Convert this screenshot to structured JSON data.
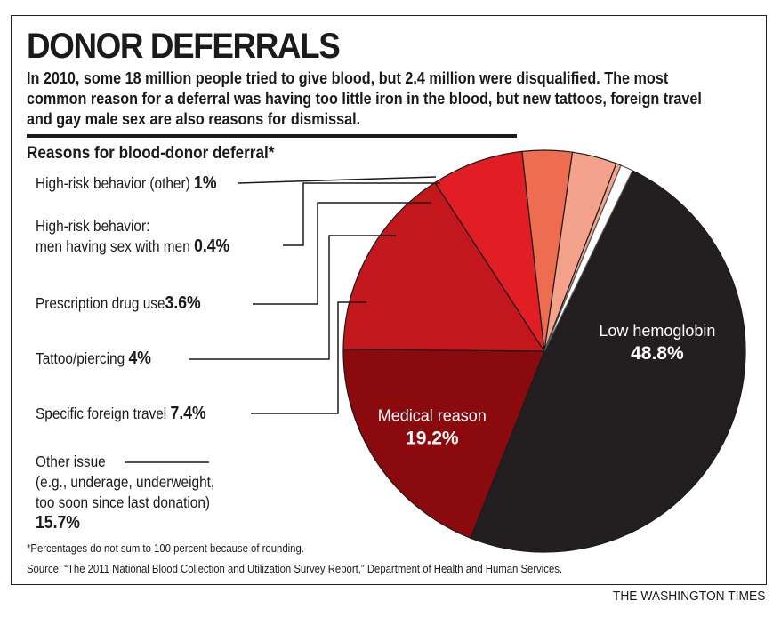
{
  "title": "DONOR DEFERRALS",
  "intro": "In 2010, some 18 million people tried to give blood, but 2.4 million were disqualified. The most common reason for a deferral was having too little iron in the blood, but new tattoos, foreign travel and gay male sex are also reasons for dismissal.",
  "footnote": "*Percentages do not sum to 100 percent because of rounding.",
  "source": "Source: “The 2011 National Blood Collection and Utilization Survey Report,” Department of Health and Human Services.",
  "credit": "THE WASHINGTON TIMES",
  "chart_data": {
    "type": "pie",
    "title": "Reasons for blood-donor deferral*",
    "slices": [
      {
        "label": "Low hemoglobin",
        "value": 48.8,
        "display": "48.8%",
        "color": "#231f20",
        "label_color": "#ffffff"
      },
      {
        "label": "Medical reason",
        "value": 19.2,
        "display": "19.2%",
        "color": "#8b0a0e",
        "label_color": "#ffffff"
      },
      {
        "label": "Other issue",
        "sublabel": [
          "(e.g., underage, underweight,",
          "too soon since last donation)"
        ],
        "value": 15.7,
        "display": "15.7%",
        "color": "#c1171d"
      },
      {
        "label": "Specific foreign travel",
        "value": 7.4,
        "display": "7.4%",
        "color": "#e21e25"
      },
      {
        "label": "Tattoo/piercing",
        "value": 4,
        "display": "4%",
        "color": "#ee6d51"
      },
      {
        "label": "Prescription drug use",
        "value": 3.6,
        "display": "3.6%",
        "color": "#f4a28b"
      },
      {
        "label": "High-risk behavior:",
        "sublabel": [
          "men having sex with men"
        ],
        "value": 0.4,
        "display": "0.4%",
        "color": "#f3a58f"
      },
      {
        "label": "High-risk behavior (other)",
        "value": 1,
        "display": "1%",
        "color": "#ffffff"
      }
    ]
  }
}
